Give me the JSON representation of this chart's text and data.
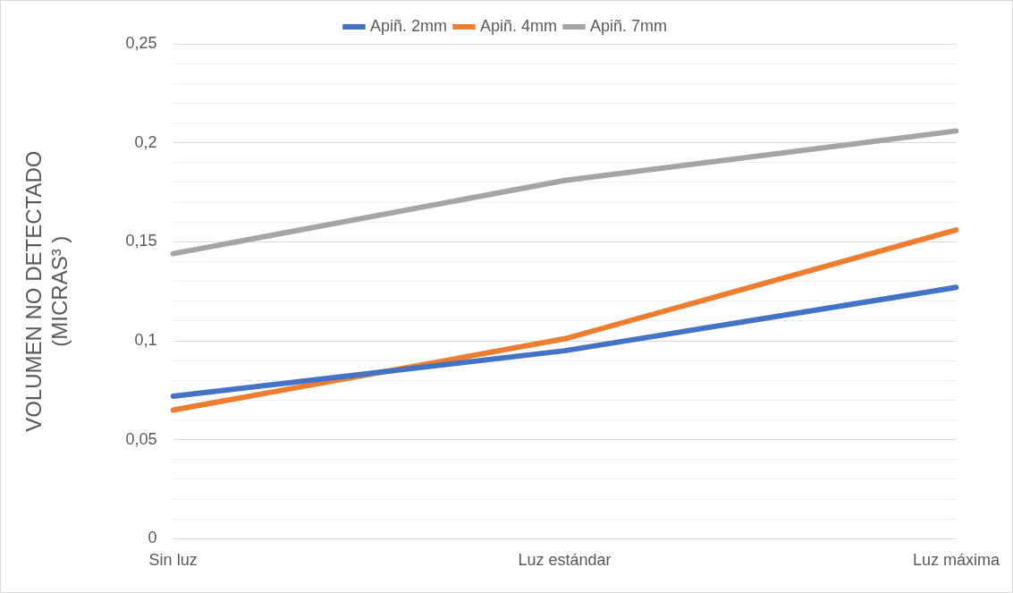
{
  "chart_data": {
    "type": "line",
    "ylabel": "VOLUMEN NO DETECTADO\n(MICRAS³ )",
    "categories": [
      "Sin luz",
      "Luz estándar",
      "Luz máxima"
    ],
    "series": [
      {
        "name": "Apiñ. 2mm",
        "color": "#4472c4",
        "values": [
          0.072,
          0.095,
          0.127
        ]
      },
      {
        "name": "Apiñ. 4mm",
        "color": "#ed7d31",
        "values": [
          0.065,
          0.101,
          0.156
        ]
      },
      {
        "name": "Apiñ. 7mm",
        "color": "#a5a5a5",
        "values": [
          0.144,
          0.181,
          0.206
        ]
      }
    ],
    "ylim": [
      0,
      0.25
    ],
    "yticks": [
      {
        "value": 0,
        "label": "0"
      },
      {
        "value": 0.01,
        "label": null
      },
      {
        "value": 0.02,
        "label": null
      },
      {
        "value": 0.03,
        "label": null
      },
      {
        "value": 0.04,
        "label": null
      },
      {
        "value": 0.05,
        "label": "0,05"
      },
      {
        "value": 0.06,
        "label": null
      },
      {
        "value": 0.07,
        "label": null
      },
      {
        "value": 0.08,
        "label": null
      },
      {
        "value": 0.09,
        "label": null
      },
      {
        "value": 0.1,
        "label": "0,1"
      },
      {
        "value": 0.11,
        "label": null
      },
      {
        "value": 0.12,
        "label": null
      },
      {
        "value": 0.13,
        "label": null
      },
      {
        "value": 0.14,
        "label": null
      },
      {
        "value": 0.15,
        "label": "0,15"
      },
      {
        "value": 0.16,
        "label": null
      },
      {
        "value": 0.17,
        "label": null
      },
      {
        "value": 0.18,
        "label": null
      },
      {
        "value": 0.19,
        "label": null
      },
      {
        "value": 0.2,
        "label": "0,2"
      },
      {
        "value": 0.21,
        "label": null
      },
      {
        "value": 0.22,
        "label": null
      },
      {
        "value": 0.23,
        "label": null
      },
      {
        "value": 0.24,
        "label": null
      },
      {
        "value": 0.25,
        "label": "0,25"
      }
    ],
    "grid": "y",
    "legend": "top",
    "marker": "none",
    "line_style": "solid"
  }
}
